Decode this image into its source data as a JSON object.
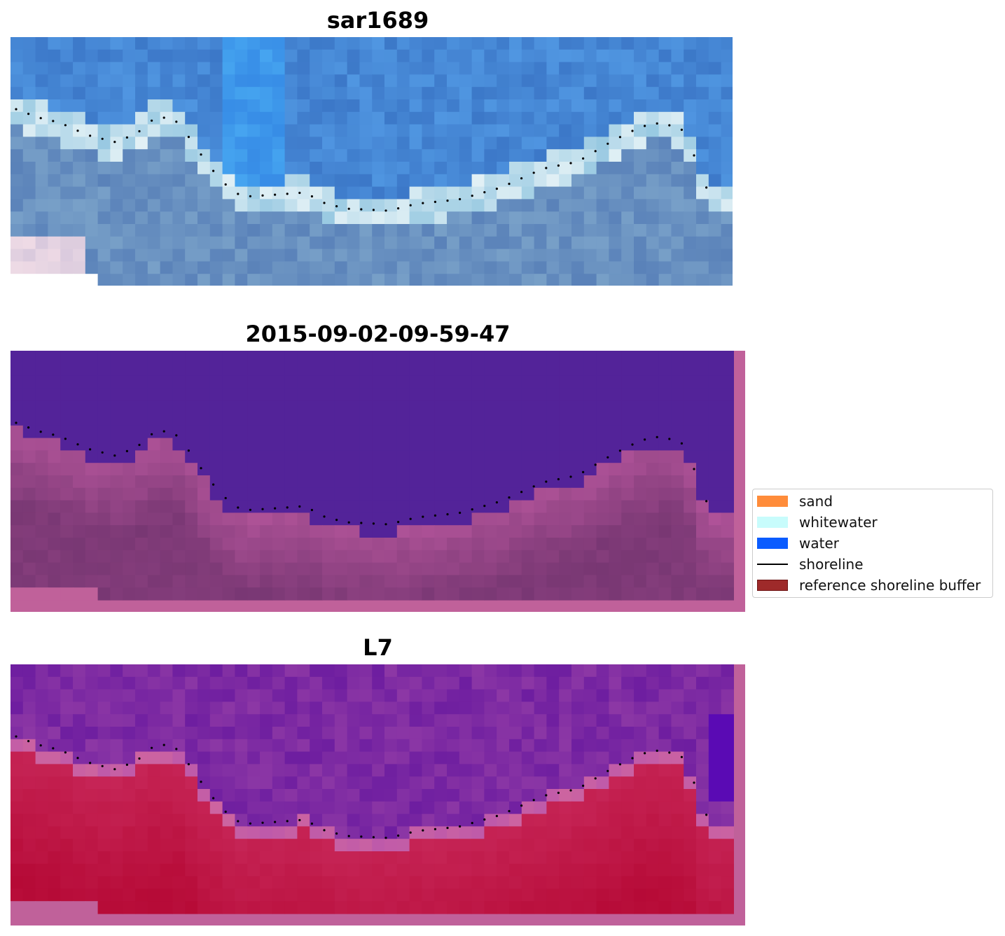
{
  "panels": [
    {
      "title": "sar1689",
      "palette": "rgb"
    },
    {
      "title": "2015-09-02-09-59-47",
      "palette": "class"
    },
    {
      "title": "L7",
      "palette": "mndwi"
    }
  ],
  "legend": {
    "items": [
      {
        "label": "sand",
        "kind": "patch",
        "color": "#ff8c3a"
      },
      {
        "label": "whitewater",
        "kind": "patch",
        "color": "#c8fcfc"
      },
      {
        "label": "water",
        "kind": "patch",
        "color": "#0a5cff"
      },
      {
        "label": "shoreline",
        "kind": "line",
        "color": "#000000"
      },
      {
        "label": "reference shoreline buffer",
        "kind": "patch",
        "color": "#9e2a2a"
      }
    ]
  },
  "colors": {
    "buffer_overlay": "#c0619a",
    "water_class": "#532399",
    "shoreline": "#000000"
  }
}
